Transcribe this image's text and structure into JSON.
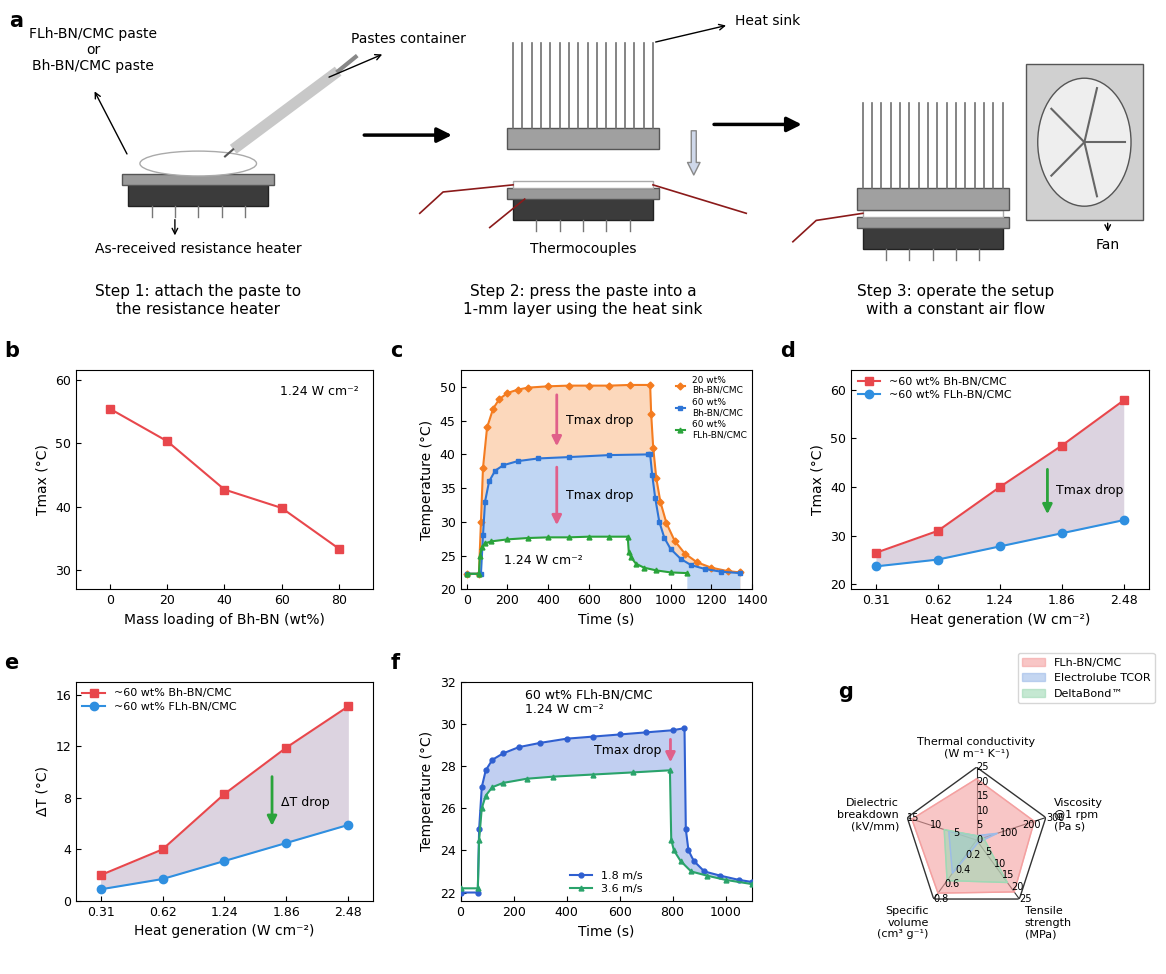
{
  "panel_a": {
    "label": "a",
    "steps": [
      {
        "caption": "Step 1: attach the paste to\nthe resistance heater",
        "paste": "FLh-BN/CMC paste\nor\nBh-BN/CMC paste",
        "container": "Pastes container",
        "heater": "As-received resistance heater"
      },
      {
        "caption": "Step 2: press the paste into a\n1-mm layer using the heat sink",
        "heat_sink": "Heat sink",
        "thermocouples": "Thermocouples"
      },
      {
        "caption": "Step 3: operate the setup\nwith a constant air flow",
        "fan": "Fan"
      }
    ]
  },
  "chart_data": [
    {
      "type": "line",
      "title": "b",
      "x_label": "Mass loading of Bh-BN (wt%)",
      "y_label": "Tmax (°C)",
      "x": [
        0,
        20,
        40,
        60,
        80
      ],
      "series": [
        {
          "values": [
            55.4,
            50.3,
            42.7,
            39.8,
            33.4
          ],
          "color": "#e8474c",
          "marker": "square"
        }
      ],
      "xlim": [
        -12,
        92
      ],
      "xticks": [
        0,
        20,
        40,
        60,
        80
      ],
      "ylim": [
        27,
        61.5
      ],
      "yticks": [
        30,
        40,
        50,
        60
      ],
      "annotations": [
        "1.24 W cm⁻²"
      ]
    },
    {
      "type": "line",
      "title": "c",
      "x_label": "Time (s)",
      "y_label": "Temperature (°C)",
      "series": [
        {
          "name": "20 wt%\nBh-BN/CMC",
          "color": "#f47c20",
          "marker": "diamond",
          "x": [
            0,
            60,
            70,
            80,
            100,
            130,
            160,
            200,
            250,
            300,
            400,
            500,
            600,
            700,
            800,
            900,
            905,
            915,
            930,
            950,
            980,
            1020,
            1070,
            1130,
            1200,
            1280,
            1340
          ],
          "values": [
            22.3,
            22.3,
            30,
            38,
            44,
            46.8,
            48.2,
            49.1,
            49.6,
            49.9,
            50.1,
            50.2,
            50.2,
            50.2,
            50.3,
            50.3,
            46,
            41,
            36.5,
            33,
            29.8,
            27.2,
            25.3,
            24,
            23.2,
            22.7,
            22.5
          ]
        },
        {
          "name": "60 wt%\nBh-BN/CMC",
          "color": "#2e75d6",
          "marker": "square",
          "x": [
            0,
            70,
            80,
            90,
            110,
            140,
            180,
            250,
            350,
            500,
            700,
            890,
            900,
            910,
            925,
            945,
            970,
            1000,
            1050,
            1100,
            1170,
            1250,
            1340
          ],
          "values": [
            22.3,
            22.3,
            28,
            33,
            36,
            37.6,
            38.4,
            39,
            39.4,
            39.6,
            39.9,
            40,
            40,
            37,
            33.5,
            30,
            27.6,
            26,
            24.5,
            23.6,
            23,
            22.6,
            22.4
          ]
        },
        {
          "name": "60 wt%\nFLh-BN/CMC",
          "color": "#2aa33b",
          "marker": "triangle",
          "x": [
            0,
            60,
            65,
            75,
            90,
            120,
            200,
            300,
            400,
            500,
            600,
            700,
            790,
            795,
            805,
            830,
            870,
            930,
            1000,
            1080
          ],
          "values": [
            22.3,
            22.3,
            25,
            26.2,
            26.8,
            27.1,
            27.4,
            27.6,
            27.7,
            27.7,
            27.8,
            27.8,
            27.8,
            25.6,
            24.8,
            23.8,
            23.2,
            22.8,
            22.5,
            22.4
          ]
        }
      ],
      "xlim": [
        -30,
        1400
      ],
      "xticks": [
        0,
        200,
        400,
        600,
        800,
        1000,
        1200,
        1400
      ],
      "ylim": [
        20,
        52.5
      ],
      "yticks": [
        20,
        25,
        30,
        35,
        40,
        45,
        50
      ],
      "legend": "upper right",
      "annotations": [
        "1.24 W cm⁻²",
        "Tmax drop",
        "Tmax drop"
      ]
    },
    {
      "type": "line",
      "title": "d",
      "x_label": "Heat generation (W cm⁻²)",
      "y_label": "Tmax (°C)",
      "categories": [
        "0.31",
        "0.62",
        "1.24",
        "1.86",
        "2.48"
      ],
      "series": [
        {
          "name": "~60 wt% Bh-BN/CMC",
          "color": "#e8474c",
          "marker": "square",
          "values": [
            26.5,
            31,
            40,
            48.5,
            57.8
          ]
        },
        {
          "name": "~60 wt% FLh-BN/CMC",
          "color": "#2f8fe0",
          "marker": "circle",
          "values": [
            23.7,
            25.1,
            27.8,
            30.5,
            33.2
          ]
        }
      ],
      "ylim": [
        19,
        64
      ],
      "yticks": [
        20,
        30,
        40,
        50,
        60
      ],
      "legend": "upper left",
      "annotations": [
        "Tmax drop"
      ]
    },
    {
      "type": "line",
      "title": "e",
      "x_label": "Heat generation (W cm⁻²)",
      "y_label": "ΔT (°C)",
      "categories": [
        "0.31",
        "0.62",
        "1.24",
        "1.86",
        "2.48"
      ],
      "series": [
        {
          "name": "~60 wt% Bh-BN/CMC",
          "color": "#e8474c",
          "marker": "square",
          "values": [
            2.0,
            4.0,
            8.3,
            11.9,
            15.1
          ]
        },
        {
          "name": "~60 wt% FLh-BN/CMC",
          "color": "#2f8fe0",
          "marker": "circle",
          "values": [
            0.9,
            1.7,
            3.1,
            4.5,
            5.9
          ]
        }
      ],
      "ylim": [
        0,
        17
      ],
      "yticks": [
        0,
        4,
        8,
        12,
        16
      ],
      "legend": "upper left",
      "annotations": [
        "ΔT drop"
      ]
    },
    {
      "type": "line",
      "title": "f",
      "x_label": "Time (s)",
      "y_label": "Temperature (°C)",
      "series": [
        {
          "name": "1.8 m/s",
          "color": "#2f5fd0",
          "marker": "circle",
          "x": [
            0,
            65,
            70,
            80,
            95,
            120,
            160,
            220,
            300,
            400,
            500,
            600,
            700,
            800,
            845,
            850,
            860,
            880,
            920,
            980,
            1050,
            1100
          ],
          "values": [
            22,
            22,
            25,
            27,
            27.8,
            28.3,
            28.6,
            28.9,
            29.1,
            29.3,
            29.4,
            29.5,
            29.6,
            29.7,
            29.8,
            25,
            24,
            23.5,
            23,
            22.8,
            22.6,
            22.5
          ]
        },
        {
          "name": "3.6 m/s",
          "color": "#2aa36b",
          "marker": "triangle",
          "x": [
            0,
            65,
            70,
            80,
            95,
            120,
            160,
            250,
            350,
            500,
            650,
            790,
            795,
            805,
            830,
            870,
            930,
            1000,
            1100
          ],
          "values": [
            22.2,
            22.2,
            24.5,
            26,
            26.6,
            27,
            27.2,
            27.4,
            27.5,
            27.6,
            27.7,
            27.8,
            24.5,
            24,
            23.5,
            23,
            22.8,
            22.6,
            22.4
          ]
        }
      ],
      "xlim": [
        0,
        1100
      ],
      "xticks": [
        0,
        200,
        400,
        600,
        800,
        1000
      ],
      "ylim": [
        21.6,
        32
      ],
      "yticks": [
        22,
        24,
        26,
        28,
        30,
        32
      ],
      "legend": "lower center",
      "annotations": [
        "60 wt% FLh-BN/CMC\n1.24 W cm⁻²",
        "Tmax drop"
      ]
    },
    {
      "type": "radar",
      "title": "g",
      "categories": [
        "Thermal conductivity\n(W m⁻¹ K⁻¹)",
        "Viscosity\n@1 rpm\n(Pa s)",
        "Tensile\nstrength\n(MPa)",
        "Specific\nvolume\n(cm³ g⁻¹)",
        "Dielectric\nbreakdown\n(kV/mm)"
      ],
      "axis_ranges": [
        [
          0,
          25
        ],
        [
          0,
          300
        ],
        [
          0,
          25
        ],
        [
          0,
          0.8
        ],
        [
          0,
          15
        ]
      ],
      "axis_ticks": [
        [
          0,
          5,
          10,
          15,
          20,
          25
        ],
        [
          100,
          200,
          300
        ],
        [
          5,
          10,
          15,
          20,
          25
        ],
        [
          0.2,
          0.4,
          0.6,
          0.8
        ],
        [
          5,
          10,
          15
        ]
      ],
      "series": [
        {
          "name": "FLh-BN/CMC",
          "color": "#f4a0a0",
          "values": [
            21,
            250,
            22,
            0.72,
            14
          ]
        },
        {
          "name": "Electrolube TCOR",
          "color": "#9dbbe8",
          "values": [
            1.5,
            90,
            1,
            0.45,
            6
          ]
        },
        {
          "name": "DeltaBond™",
          "color": "#9fd9b5",
          "values": [
            1.5,
            30,
            18,
            0.55,
            7
          ]
        }
      ],
      "legend": "upper right"
    }
  ]
}
